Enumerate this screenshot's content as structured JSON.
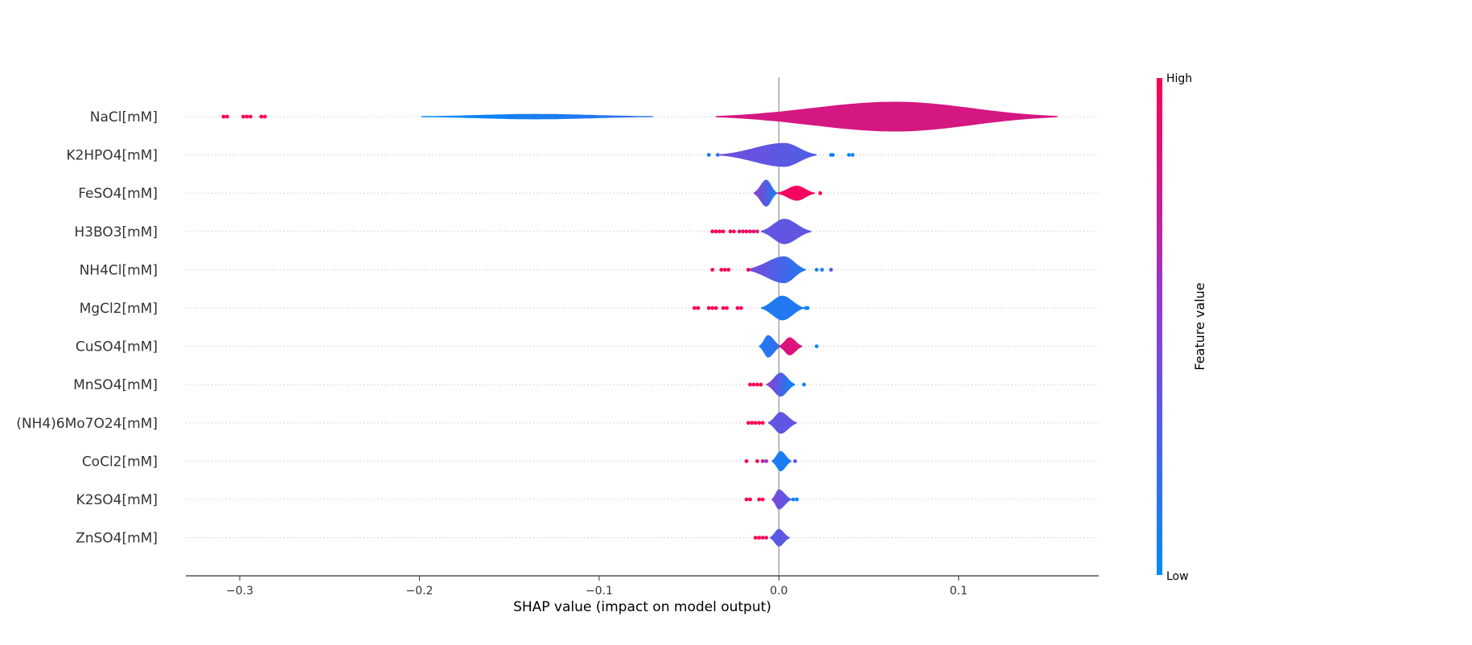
{
  "chart_data": {
    "type": "violin",
    "xlabel": "SHAP value (impact on model output)",
    "xlim": [
      -0.33,
      0.178
    ],
    "xticks": [
      -0.3,
      -0.2,
      -0.1,
      0.0,
      0.1
    ],
    "xtick_labels": [
      "−0.3",
      "−0.2",
      "−0.1",
      "0.0",
      "0.1"
    ],
    "grid": false,
    "colorbar": {
      "title": "Feature value",
      "high_label": "High",
      "low_label": "Low",
      "high_color": "#ff0052",
      "mid_color": "#8a3fd6",
      "low_color": "#008bfb"
    },
    "features": [
      {
        "name": "NaCl[mM]",
        "violins": [
          {
            "start": -0.199,
            "end": -0.07,
            "peak": -0.135,
            "w": 0.12,
            "cl": 0.0,
            "cr": 0.18
          },
          {
            "start": -0.035,
            "end": 0.155,
            "peak": 0.065,
            "w": 0.78,
            "cl": 0.82,
            "cr": 0.82
          }
        ],
        "points": [
          {
            "x": -0.309,
            "c": 1
          },
          {
            "x": -0.307,
            "c": 1
          },
          {
            "x": -0.298,
            "c": 1
          },
          {
            "x": -0.296,
            "c": 1
          },
          {
            "x": -0.294,
            "c": 1
          },
          {
            "x": -0.288,
            "c": 1
          },
          {
            "x": -0.286,
            "c": 1
          }
        ]
      },
      {
        "name": "K2HPO4[mM]",
        "violins": [
          {
            "start": -0.033,
            "end": 0.021,
            "peak": 0.003,
            "w": 0.62,
            "cl": 0.42,
            "cr": 0.28
          }
        ],
        "points": [
          {
            "x": -0.039,
            "c": 0.05
          },
          {
            "x": -0.034,
            "c": 0.2
          },
          {
            "x": 0.029,
            "c": 0.05
          },
          {
            "x": 0.03,
            "c": 0.05
          },
          {
            "x": 0.039,
            "c": 0.05
          },
          {
            "x": 0.041,
            "c": 0.05
          }
        ]
      },
      {
        "name": "FeSO4[mM]",
        "violins": [
          {
            "start": -0.014,
            "end": -0.001,
            "peak": -0.007,
            "w": 0.7,
            "cl": 0.55,
            "cr": 0.08
          },
          {
            "start": -0.001,
            "end": 0.02,
            "peak": 0.01,
            "w": 0.38,
            "cl": 0.95,
            "cr": 0.95
          }
        ],
        "points": [
          {
            "x": 0.023,
            "c": 1
          }
        ]
      },
      {
        "name": "H3BO3[mM]",
        "violins": [
          {
            "start": -0.01,
            "end": 0.018,
            "peak": 0.003,
            "w": 0.66,
            "cl": 0.35,
            "cr": 0.35
          }
        ],
        "points": [
          {
            "x": -0.037,
            "c": 1
          },
          {
            "x": -0.035,
            "c": 1
          },
          {
            "x": -0.033,
            "c": 1
          },
          {
            "x": -0.031,
            "c": 1
          },
          {
            "x": -0.027,
            "c": 1
          },
          {
            "x": -0.025,
            "c": 0.9
          },
          {
            "x": -0.022,
            "c": 0.9
          },
          {
            "x": -0.02,
            "c": 0.95
          },
          {
            "x": -0.018,
            "c": 0.95
          },
          {
            "x": -0.016,
            "c": 0.95
          },
          {
            "x": -0.014,
            "c": 0.9
          },
          {
            "x": -0.012,
            "c": 0.8
          }
        ]
      },
      {
        "name": "NH4Cl[mM]",
        "violins": [
          {
            "start": -0.018,
            "end": 0.015,
            "peak": 0.003,
            "w": 0.7,
            "cl": 0.45,
            "cr": 0.12
          }
        ],
        "points": [
          {
            "x": -0.037,
            "c": 1
          },
          {
            "x": -0.032,
            "c": 1
          },
          {
            "x": -0.03,
            "c": 1
          },
          {
            "x": -0.028,
            "c": 1
          },
          {
            "x": -0.017,
            "c": 1
          },
          {
            "x": 0.021,
            "c": 0.05
          },
          {
            "x": 0.024,
            "c": 0.05
          },
          {
            "x": 0.029,
            "c": 0.3
          }
        ]
      },
      {
        "name": "MgCl2[mM]",
        "violins": [
          {
            "start": -0.01,
            "end": 0.014,
            "peak": 0.002,
            "w": 0.64,
            "cl": 0.12,
            "cr": 0.12
          }
        ],
        "points": [
          {
            "x": -0.047,
            "c": 1
          },
          {
            "x": -0.045,
            "c": 1
          },
          {
            "x": -0.039,
            "c": 1
          },
          {
            "x": -0.037,
            "c": 1
          },
          {
            "x": -0.035,
            "c": 1
          },
          {
            "x": -0.031,
            "c": 1
          },
          {
            "x": -0.029,
            "c": 1
          },
          {
            "x": -0.023,
            "c": 1
          },
          {
            "x": -0.021,
            "c": 0.9
          },
          {
            "x": 0.015,
            "c": 0.05
          },
          {
            "x": 0.016,
            "c": 0.05
          }
        ]
      },
      {
        "name": "CuSO4[mM]",
        "violins": [
          {
            "start": -0.011,
            "end": 0.001,
            "peak": -0.006,
            "w": 0.58,
            "cl": 0.1,
            "cr": 0.2
          },
          {
            "start": 0.0,
            "end": 0.013,
            "peak": 0.006,
            "w": 0.46,
            "cl": 0.85,
            "cr": 0.85
          }
        ],
        "points": [
          {
            "x": 0.021,
            "c": 0.05
          }
        ]
      },
      {
        "name": "MnSO4[mM]",
        "violins": [
          {
            "start": -0.007,
            "end": 0.009,
            "peak": 0.001,
            "w": 0.62,
            "cl": 0.55,
            "cr": 0.0
          }
        ],
        "points": [
          {
            "x": -0.016,
            "c": 1
          },
          {
            "x": -0.014,
            "c": 1
          },
          {
            "x": -0.012,
            "c": 1
          },
          {
            "x": -0.01,
            "c": 1
          },
          {
            "x": 0.014,
            "c": 0.05
          }
        ]
      },
      {
        "name": "(NH4)6Mo7O24[mM]",
        "violins": [
          {
            "start": -0.006,
            "end": 0.01,
            "peak": 0.001,
            "w": 0.56,
            "cl": 0.35,
            "cr": 0.35
          }
        ],
        "points": [
          {
            "x": -0.017,
            "c": 1
          },
          {
            "x": -0.015,
            "c": 1
          },
          {
            "x": -0.013,
            "c": 1
          },
          {
            "x": -0.011,
            "c": 1
          },
          {
            "x": -0.009,
            "c": 1
          }
        ]
      },
      {
        "name": "CoCl2[mM]",
        "violins": [
          {
            "start": -0.004,
            "end": 0.007,
            "peak": 0.001,
            "w": 0.52,
            "cl": 0.1,
            "cr": 0.1
          }
        ],
        "points": [
          {
            "x": -0.018,
            "c": 1
          },
          {
            "x": -0.012,
            "c": 1
          },
          {
            "x": -0.009,
            "c": 0.7
          },
          {
            "x": -0.007,
            "c": 0.6
          },
          {
            "x": 0.009,
            "c": 0.4
          }
        ]
      },
      {
        "name": "K2SO4[mM]",
        "violins": [
          {
            "start": -0.004,
            "end": 0.007,
            "peak": 0.0,
            "w": 0.52,
            "cl": 0.45,
            "cr": 0.3
          }
        ],
        "points": [
          {
            "x": -0.018,
            "c": 1
          },
          {
            "x": -0.016,
            "c": 1
          },
          {
            "x": -0.011,
            "c": 1
          },
          {
            "x": -0.009,
            "c": 1
          },
          {
            "x": 0.008,
            "c": 0.05
          },
          {
            "x": 0.01,
            "c": 0.05
          }
        ]
      },
      {
        "name": "ZnSO4[mM]",
        "violins": [
          {
            "start": -0.005,
            "end": 0.006,
            "peak": 0.0,
            "w": 0.45,
            "cl": 0.3,
            "cr": 0.35
          }
        ],
        "points": [
          {
            "x": -0.013,
            "c": 1
          },
          {
            "x": -0.011,
            "c": 1
          },
          {
            "x": -0.009,
            "c": 1
          },
          {
            "x": -0.007,
            "c": 0.9
          }
        ]
      }
    ]
  }
}
